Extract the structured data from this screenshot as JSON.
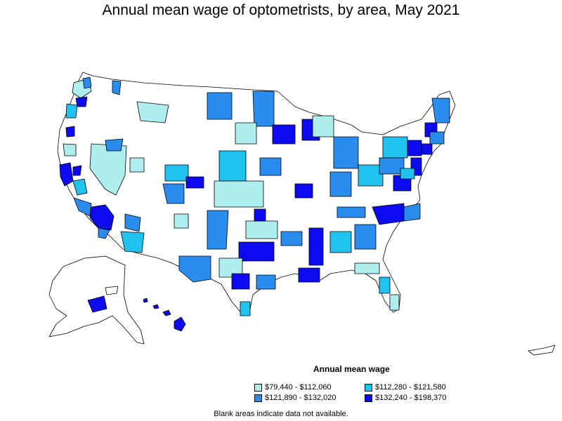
{
  "title": "Annual mean wage of optometrists, by area, May 2021",
  "legend": {
    "title": "Annual mean wage",
    "items": [
      {
        "label": "$79,440 - $112,060",
        "color": "#aeeeef"
      },
      {
        "label": "$112,280 - $121,580",
        "color": "#21c2ef"
      },
      {
        "label": "$121,890 - $132,020",
        "color": "#2a8cef"
      },
      {
        "label": "$132,240 - $198,370",
        "color": "#0c0bef"
      }
    ]
  },
  "footnote": "Blank areas indicate data not available.",
  "colors": {
    "no_data": "#ffffff",
    "border": "#000000"
  }
}
